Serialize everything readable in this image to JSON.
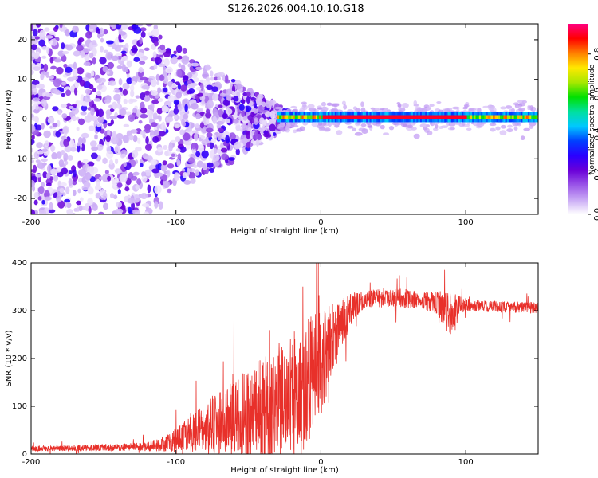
{
  "chart_data": [
    {
      "type": "heatmap",
      "title": "S126.2026.004.10.10.G18",
      "xlabel": "Height of straight line (km)",
      "ylabel": "Frequency (Hz)",
      "xlim": [
        -200,
        150
      ],
      "ylim": [
        -24,
        24
      ],
      "xticks": [
        -200,
        -100,
        0,
        100
      ],
      "xtick_labels": [
        "-200",
        "-100",
        "0",
        "100"
      ],
      "yticks": [
        -20,
        -10,
        0,
        10,
        20
      ],
      "ytick_labels": [
        "-20",
        "-10",
        "0",
        "10",
        "20"
      ],
      "colorbar": {
        "label": "Normalized spectral amplitude",
        "range": [
          0.0,
          0.95
        ],
        "ticks": [
          0.0,
          0.2,
          0.4,
          0.6,
          0.8
        ],
        "tick_labels": [
          "0.0",
          "0.2",
          "0.4",
          "0.6",
          "0.8"
        ],
        "colormap": [
          "#ffffff",
          "#c9a9f5",
          "#9a55e8",
          "#6a00d8",
          "#2a00ff",
          "#0040ff",
          "#00c8ff",
          "#00e0a0",
          "#00e000",
          "#a8e800",
          "#ffe800",
          "#ff8000",
          "#ff0000",
          "#ff0080"
        ]
      },
      "features": {
        "scatter_region_km": [
          -200,
          -30
        ],
        "line_region_km": [
          -30,
          150
        ],
        "line_frequency_hz": 0.5
      }
    },
    {
      "type": "line",
      "xlabel": "Height of straight line (km)",
      "ylabel": "SNR (10 * v/v)",
      "xlim": [
        -200,
        150
      ],
      "ylim": [
        0,
        400
      ],
      "xticks": [
        -200,
        -100,
        0,
        100
      ],
      "xtick_labels": [
        "-200",
        "-100",
        "0",
        "100"
      ],
      "yticks": [
        0,
        100,
        200,
        300,
        400
      ],
      "ytick_labels": [
        "0",
        "100",
        "200",
        "300",
        "400"
      ],
      "color": "#e8302a",
      "series": [
        {
          "name": "SNR",
          "x": [
            -200,
            -180,
            -160,
            -140,
            -120,
            -110,
            -100,
            -90,
            -80,
            -70,
            -60,
            -50,
            -40,
            -30,
            -20,
            -15,
            -10,
            -5,
            0,
            5,
            10,
            15,
            20,
            25,
            30,
            40,
            50,
            60,
            70,
            80,
            85,
            90,
            95,
            100,
            110,
            120,
            130,
            140,
            150
          ],
          "y": [
            12,
            12,
            13,
            14,
            16,
            20,
            30,
            45,
            55,
            65,
            75,
            85,
            95,
            110,
            125,
            135,
            150,
            170,
            190,
            220,
            250,
            275,
            300,
            315,
            322,
            325,
            328,
            325,
            322,
            318,
            300,
            295,
            312,
            312,
            310,
            308,
            307,
            307,
            306
          ],
          "spread": [
            6,
            6,
            7,
            8,
            10,
            15,
            25,
            40,
            55,
            70,
            80,
            95,
            110,
            120,
            130,
            135,
            140,
            130,
            110,
            90,
            70,
            55,
            35,
            25,
            20,
            22,
            20,
            20,
            20,
            25,
            40,
            50,
            20,
            14,
            12,
            12,
            12,
            12,
            12
          ]
        }
      ]
    }
  ]
}
